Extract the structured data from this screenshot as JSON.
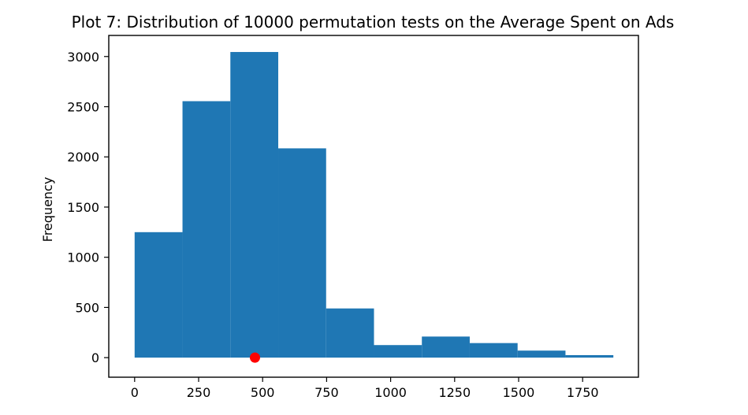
{
  "chart_data": {
    "type": "bar",
    "title": "Plot 7: Distribution of 10000 permutation tests on the Average Spent on Ads",
    "xlabel": "",
    "ylabel": "Frequency",
    "xlim": [
      -101,
      1968
    ],
    "ylim": [
      -195,
      3210
    ],
    "x_ticks": [
      0,
      250,
      500,
      750,
      1000,
      1250,
      1500,
      1750
    ],
    "y_ticks": [
      0,
      500,
      1000,
      1500,
      2000,
      2500,
      3000
    ],
    "bin_edges": [
      0,
      187,
      374,
      561,
      748,
      935,
      1122,
      1309,
      1496,
      1683,
      1870
    ],
    "counts": [
      1250,
      2555,
      3045,
      2085,
      490,
      125,
      210,
      145,
      70,
      25
    ],
    "marker": {
      "x": 470,
      "y": 0
    },
    "grid": false,
    "legend": "none",
    "colors": {
      "bars": "#1f77b4",
      "marker": "#ff0000",
      "axes": "#000000"
    }
  }
}
